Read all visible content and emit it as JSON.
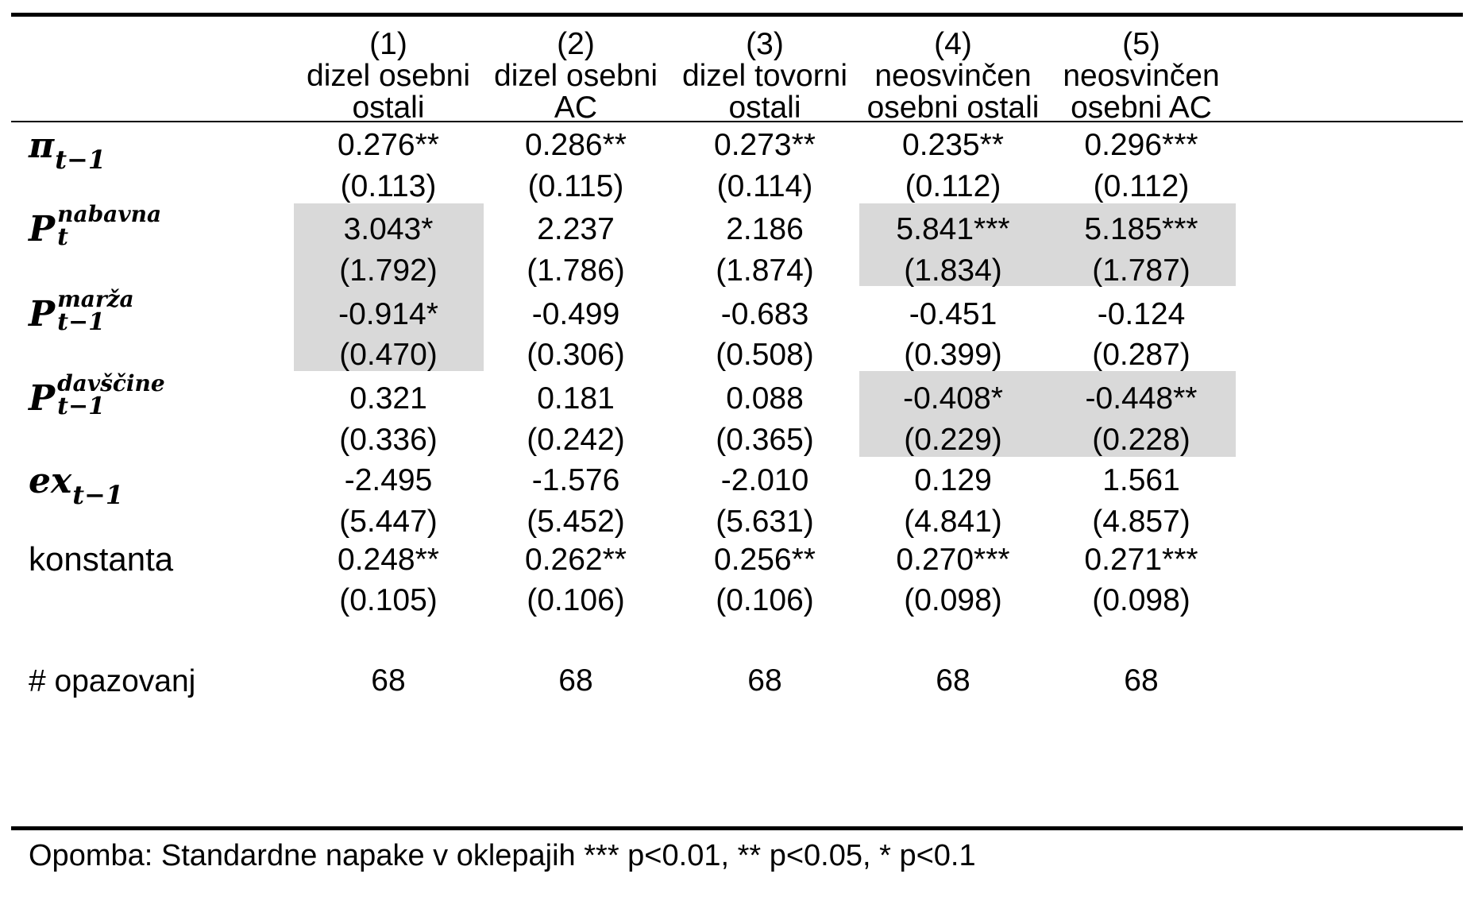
{
  "columns": [
    {
      "number": "(1)",
      "line1": "dizel osebni",
      "line2": "ostali"
    },
    {
      "number": "(2)",
      "line1": "dizel osebni",
      "line2": "AC"
    },
    {
      "number": "(3)",
      "line1": "dizel tovorni",
      "line2": "ostali"
    },
    {
      "number": "(4)",
      "line1": "neosvinčen",
      "line2": "osebni ostali"
    },
    {
      "number": "(5)",
      "line1": "neosvinčen",
      "line2": "osebni AC"
    }
  ],
  "rows": [
    {
      "label": {
        "base": "π",
        "sup": "",
        "sub": "t−1"
      },
      "coef": [
        "0.276**",
        "0.286**",
        "0.273**",
        "0.235**",
        "0.296***"
      ],
      "se": [
        "(0.113)",
        "(0.115)",
        "(0.114)",
        "(0.112)",
        "(0.112)"
      ]
    },
    {
      "label": {
        "base": "P",
        "sup": "nabavna",
        "sub": "t"
      },
      "coef": [
        "3.043*",
        "2.237",
        "2.186",
        "5.841***",
        "5.185***"
      ],
      "se": [
        "(1.792)",
        "(1.786)",
        "(1.874)",
        "(1.834)",
        "(1.787)"
      ]
    },
    {
      "label": {
        "base": "P",
        "sup": "marža",
        "sub": "t−1"
      },
      "coef": [
        "-0.914*",
        "-0.499",
        "-0.683",
        "-0.451",
        "-0.124"
      ],
      "se": [
        "(0.470)",
        "(0.306)",
        "(0.508)",
        "(0.399)",
        "(0.287)"
      ]
    },
    {
      "label": {
        "base": "P",
        "sup": "davščine",
        "sub": "t−1"
      },
      "coef": [
        "0.321",
        "0.181",
        "0.088",
        "-0.408*",
        "-0.448**"
      ],
      "se": [
        "(0.336)",
        "(0.242)",
        "(0.365)",
        "(0.229)",
        "(0.228)"
      ]
    },
    {
      "label": {
        "base": "ex",
        "sup": "",
        "sub": "t−1"
      },
      "coef": [
        "-2.495",
        "-1.576",
        "-2.010",
        "0.129",
        "1.561"
      ],
      "se": [
        "(5.447)",
        "(5.452)",
        "(5.631)",
        "(4.841)",
        "(4.857)"
      ]
    }
  ],
  "constant": {
    "label": "konstanta",
    "coef": [
      "0.248**",
      "0.262**",
      "0.256**",
      "0.270***",
      "0.271***"
    ],
    "se": [
      "(0.105)",
      "(0.106)",
      "(0.106)",
      "(0.098)",
      "(0.098)"
    ]
  },
  "observations": {
    "label": "# opazovanj",
    "values": [
      "68",
      "68",
      "68",
      "68",
      "68"
    ]
  },
  "footnote": "Opomba: Standardne napake v oklepajih *** p<0.01, ** p<0.05, * p<0.1",
  "highlight_color": "#d9d9d9"
}
